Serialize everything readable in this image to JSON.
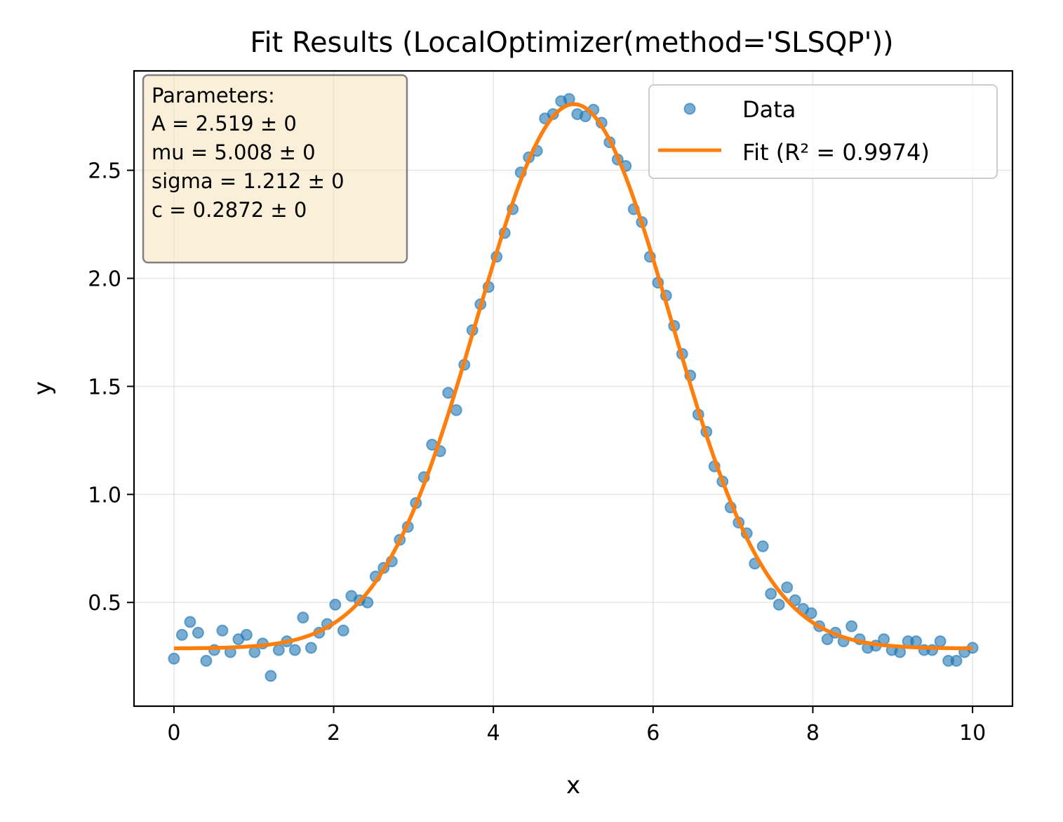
{
  "chart_data": {
    "type": "scatter",
    "title": "Fit Results (LocalOptimizer(method='SLSQP'))",
    "xlabel": "x",
    "ylabel": "y",
    "xlim": [
      -0.5,
      10.5
    ],
    "ylim": [
      0.02,
      2.96
    ],
    "grid": true,
    "legend_position": "top-right",
    "x_ticks": [
      "0",
      "2",
      "4",
      "6",
      "8",
      "10"
    ],
    "y_ticks": [
      "0.5",
      "1.0",
      "1.5",
      "2.0",
      "2.5"
    ],
    "params_box": {
      "lines": [
        "Parameters:",
        "A = 2.519 ± 0",
        "mu = 5.008 ± 0",
        "sigma = 1.212 ± 0",
        "c = 0.2872 ± 0"
      ]
    },
    "series": [
      {
        "name": "Data",
        "kind": "points",
        "color": "#1f77b4",
        "x": [
          0.0,
          0.101,
          0.202,
          0.303,
          0.404,
          0.505,
          0.606,
          0.707,
          0.808,
          0.909,
          1.01,
          1.111,
          1.212,
          1.313,
          1.414,
          1.515,
          1.616,
          1.717,
          1.818,
          1.919,
          2.02,
          2.121,
          2.222,
          2.323,
          2.424,
          2.525,
          2.626,
          2.727,
          2.828,
          2.929,
          3.03,
          3.131,
          3.232,
          3.333,
          3.434,
          3.535,
          3.636,
          3.737,
          3.838,
          3.939,
          4.04,
          4.141,
          4.242,
          4.343,
          4.444,
          4.545,
          4.646,
          4.747,
          4.848,
          4.949,
          5.051,
          5.152,
          5.253,
          5.354,
          5.455,
          5.556,
          5.657,
          5.758,
          5.859,
          5.96,
          6.061,
          6.162,
          6.263,
          6.364,
          6.465,
          6.566,
          6.667,
          6.768,
          6.869,
          6.97,
          7.071,
          7.172,
          7.273,
          7.374,
          7.475,
          7.576,
          7.677,
          7.778,
          7.879,
          7.98,
          8.081,
          8.182,
          8.283,
          8.384,
          8.485,
          8.586,
          8.687,
          8.788,
          8.889,
          8.99,
          9.091,
          9.192,
          9.293,
          9.394,
          9.495,
          9.596,
          9.697,
          9.798,
          9.899,
          10.0
        ],
        "y": [
          0.24,
          0.35,
          0.41,
          0.36,
          0.23,
          0.28,
          0.37,
          0.27,
          0.33,
          0.35,
          0.27,
          0.31,
          0.16,
          0.28,
          0.32,
          0.28,
          0.43,
          0.29,
          0.36,
          0.4,
          0.49,
          0.37,
          0.53,
          0.51,
          0.5,
          0.62,
          0.66,
          0.69,
          0.79,
          0.85,
          0.96,
          1.08,
          1.23,
          1.2,
          1.47,
          1.39,
          1.6,
          1.76,
          1.88,
          1.96,
          2.1,
          2.21,
          2.32,
          2.49,
          2.56,
          2.59,
          2.74,
          2.76,
          2.82,
          2.83,
          2.76,
          2.75,
          2.78,
          2.72,
          2.63,
          2.55,
          2.52,
          2.32,
          2.26,
          2.1,
          1.98,
          1.92,
          1.78,
          1.65,
          1.55,
          1.37,
          1.29,
          1.13,
          1.06,
          0.94,
          0.87,
          0.82,
          0.68,
          0.76,
          0.54,
          0.49,
          0.57,
          0.51,
          0.47,
          0.45,
          0.39,
          0.33,
          0.36,
          0.32,
          0.39,
          0.33,
          0.29,
          0.3,
          0.33,
          0.28,
          0.27,
          0.32,
          0.32,
          0.28,
          0.28,
          0.32,
          0.23,
          0.23,
          0.27,
          0.29
        ]
      },
      {
        "name": "Fit (R² = 0.9974)",
        "kind": "line",
        "color": "#ff7f0e",
        "model": "gaussian",
        "params": {
          "A": 2.519,
          "mu": 5.008,
          "sigma": 1.212,
          "c": 0.2872
        },
        "x_range": [
          0,
          10
        ]
      }
    ]
  }
}
